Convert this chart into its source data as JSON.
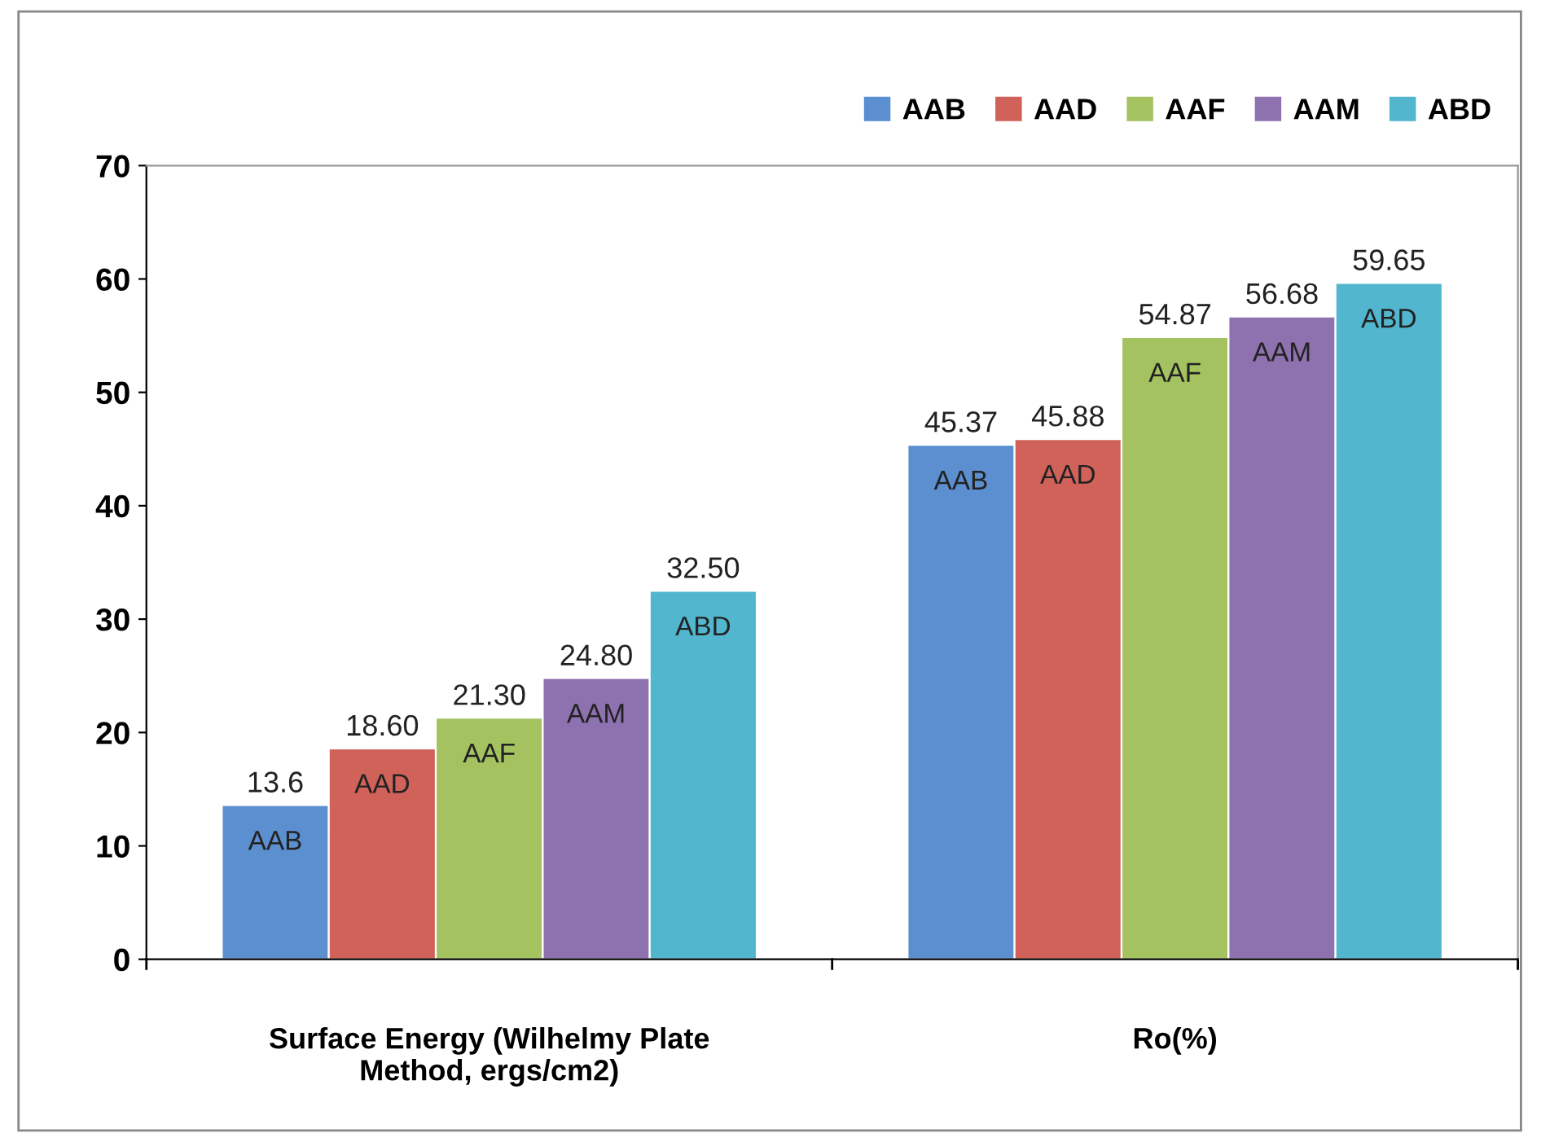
{
  "chart_data": {
    "type": "bar",
    "categories": [
      "Surface Energy (Wilhelmy Plate\nMethod, ergs/cm2)",
      "Ro(%)"
    ],
    "series": [
      {
        "name": "AAB",
        "color": "#5b8fcf",
        "values": [
          13.6,
          45.37
        ],
        "value_labels": [
          "13.6",
          "45.37"
        ]
      },
      {
        "name": "AAD",
        "color": "#d0625a",
        "values": [
          18.6,
          45.88
        ],
        "value_labels": [
          "18.60",
          "45.88"
        ]
      },
      {
        "name": "AAF",
        "color": "#a5c260",
        "values": [
          21.3,
          54.87
        ],
        "value_labels": [
          "21.30",
          "54.87"
        ]
      },
      {
        "name": "AAM",
        "color": "#8e72b0",
        "values": [
          24.8,
          56.68
        ],
        "value_labels": [
          "24.80",
          "56.68"
        ]
      },
      {
        "name": "ABD",
        "color": "#52b6cf",
        "values": [
          32.5,
          59.65
        ],
        "value_labels": [
          "32.50",
          "59.65"
        ]
      }
    ],
    "ylim": [
      0,
      70
    ],
    "yticks": [
      0,
      10,
      20,
      30,
      40,
      50,
      60,
      70
    ],
    "grid": false,
    "legend": "top right"
  }
}
